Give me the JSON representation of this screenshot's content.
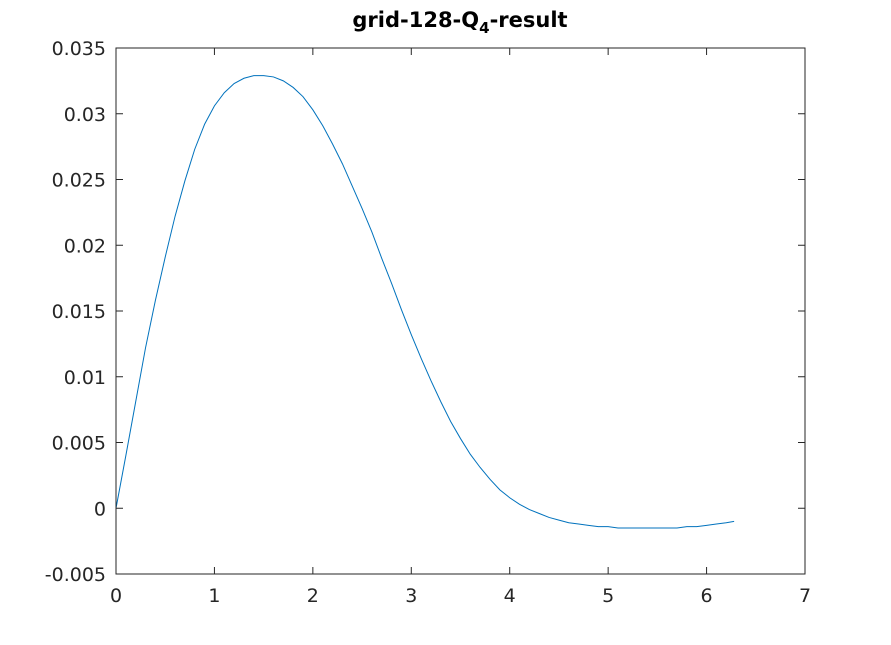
{
  "chart_data": {
    "type": "line",
    "title": {
      "prefix": "grid-128-Q",
      "subscript": "4",
      "suffix": "-result"
    },
    "xlabel": "",
    "ylabel": "",
    "xlim": [
      0,
      7
    ],
    "ylim": [
      -0.005,
      0.035
    ],
    "x_ticks": [
      0,
      1,
      2,
      3,
      4,
      5,
      6,
      7
    ],
    "x_tick_labels": [
      "0",
      "1",
      "2",
      "3",
      "4",
      "5",
      "6",
      "7"
    ],
    "y_ticks": [
      -0.005,
      0,
      0.005,
      0.01,
      0.015,
      0.02,
      0.025,
      0.03,
      0.035
    ],
    "y_tick_labels": [
      "-0.005",
      "0",
      "0.005",
      "0.01",
      "0.015",
      "0.02",
      "0.025",
      "0.03",
      "0.035"
    ],
    "grid": false,
    "series": [
      {
        "color": "#0072bd",
        "x": [
          0,
          0.1,
          0.2,
          0.3,
          0.4,
          0.5,
          0.6,
          0.7,
          0.8,
          0.9,
          1.0,
          1.1,
          1.2,
          1.3,
          1.4,
          1.5,
          1.6,
          1.7,
          1.8,
          1.9,
          2.0,
          2.1,
          2.2,
          2.3,
          2.4,
          2.5,
          2.6,
          2.7,
          2.8,
          2.9,
          3.0,
          3.1,
          3.2,
          3.3,
          3.4,
          3.5,
          3.6,
          3.7,
          3.8,
          3.9,
          4.0,
          4.1,
          4.2,
          4.3,
          4.4,
          4.5,
          4.6,
          4.7,
          4.8,
          4.9,
          5.0,
          5.1,
          5.2,
          5.3,
          5.4,
          5.5,
          5.6,
          5.7,
          5.8,
          5.9,
          6.0,
          6.1,
          6.2,
          6.28
        ],
        "y": [
          0,
          0.004,
          0.0081,
          0.0122,
          0.0158,
          0.0191,
          0.0222,
          0.0249,
          0.0273,
          0.0292,
          0.0306,
          0.0316,
          0.0323,
          0.0327,
          0.0329,
          0.0329,
          0.0328,
          0.0325,
          0.032,
          0.0313,
          0.0303,
          0.0291,
          0.0277,
          0.0262,
          0.0245,
          0.0228,
          0.021,
          0.019,
          0.0171,
          0.0151,
          0.0132,
          0.0114,
          0.0097,
          0.0081,
          0.0066,
          0.0053,
          0.0041,
          0.0031,
          0.0022,
          0.0014,
          0.0008,
          0.0003,
          -0.0001,
          -0.0004,
          -0.0007,
          -0.0009,
          -0.0011,
          -0.0012,
          -0.0013,
          -0.0014,
          -0.0014,
          -0.0015,
          -0.0015,
          -0.0015,
          -0.0015,
          -0.0015,
          -0.0015,
          -0.0015,
          -0.0014,
          -0.0014,
          -0.0013,
          -0.0012,
          -0.0011,
          -0.001
        ]
      }
    ]
  }
}
